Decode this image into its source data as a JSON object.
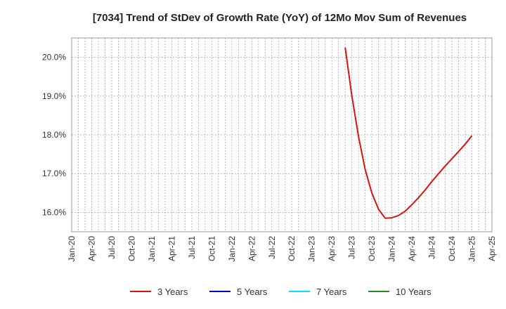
{
  "chart_data": {
    "type": "line",
    "title": "[7034]  Trend of StDev of Growth Rate (YoY) of 12Mo Mov Sum of Revenues",
    "xlabel": "",
    "ylabel": "",
    "x_tick_labels": [
      "Jan-20",
      "Apr-20",
      "Jul-20",
      "Oct-20",
      "Jan-21",
      "Apr-21",
      "Jul-21",
      "Oct-21",
      "Jan-22",
      "Apr-22",
      "Jul-22",
      "Oct-22",
      "Jan-23",
      "Apr-23",
      "Jul-23",
      "Oct-23",
      "Jan-24",
      "Apr-24",
      "Jul-24",
      "Oct-24",
      "Jan-25",
      "Apr-25"
    ],
    "y_ticks": [
      16.0,
      17.0,
      18.0,
      19.0,
      20.0
    ],
    "y_tick_labels": [
      "16.0%",
      "17.0%",
      "18.0%",
      "19.0%",
      "20.0%"
    ],
    "ylim": [
      15.5,
      20.5
    ],
    "grid": true,
    "legend_position": "bottom",
    "series": [
      {
        "name": "3 Years",
        "color": "#dd1111",
        "x": [
          "Jun-23",
          "Jul-23",
          "Aug-23",
          "Sep-23",
          "Oct-23",
          "Nov-23",
          "Dec-23",
          "Jan-24",
          "Feb-24",
          "Mar-24",
          "Apr-24",
          "May-24",
          "Jun-24",
          "Jul-24",
          "Aug-24",
          "Sep-24",
          "Oct-24",
          "Nov-24",
          "Dec-24",
          "Jan-25"
        ],
        "values": [
          20.25,
          19.0,
          17.95,
          17.1,
          16.5,
          16.08,
          15.85,
          15.86,
          15.92,
          16.03,
          16.2,
          16.38,
          16.58,
          16.8,
          17.0,
          17.2,
          17.38,
          17.57,
          17.76,
          17.98
        ]
      },
      {
        "name": "5 Years",
        "color": "#0000cc",
        "x": [],
        "values": []
      },
      {
        "name": "7 Years",
        "color": "#00e5ee",
        "x": [],
        "values": []
      },
      {
        "name": "10 Years",
        "color": "#228b22",
        "x": [],
        "values": []
      }
    ]
  }
}
